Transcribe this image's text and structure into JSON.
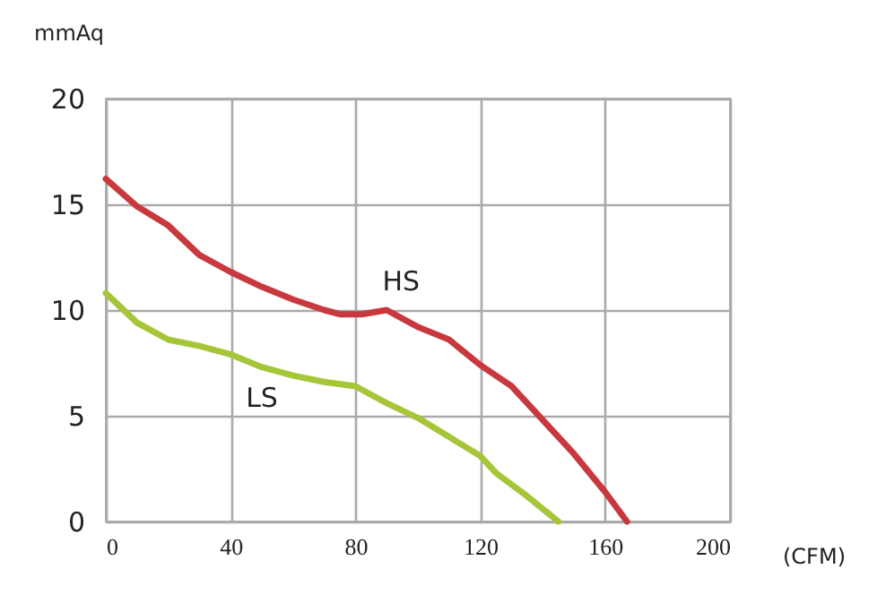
{
  "chart_data": {
    "type": "line",
    "xlabel": "(CFM)",
    "ylabel": "mmAq",
    "xlim": [
      0,
      200
    ],
    "xticks": [
      0,
      40,
      80,
      120,
      160,
      200
    ],
    "ylim": [
      0,
      20
    ],
    "yticks": [
      0,
      5,
      10,
      15,
      20
    ],
    "grid": true,
    "legend": false,
    "marker": "none",
    "line_style": "solid",
    "series": [
      {
        "name": "HS",
        "color": "#c8393f",
        "x": [
          0,
          10,
          20,
          30,
          40,
          50,
          60,
          70,
          75,
          82,
          90,
          100,
          110,
          120,
          130,
          140,
          150,
          160,
          167
        ],
        "values": [
          16.2,
          14.9,
          14.0,
          12.6,
          11.8,
          11.1,
          10.5,
          10.0,
          9.8,
          9.8,
          10.0,
          9.2,
          8.6,
          7.4,
          6.4,
          4.8,
          3.2,
          1.4,
          0
        ]
      },
      {
        "name": "LS",
        "color": "#a6c63a",
        "x": [
          0,
          10,
          20,
          30,
          40,
          50,
          60,
          70,
          80,
          90,
          100,
          110,
          120,
          125,
          135,
          145
        ],
        "values": [
          10.8,
          9.4,
          8.6,
          8.3,
          7.9,
          7.3,
          6.9,
          6.6,
          6.4,
          5.6,
          4.9,
          4.0,
          3.1,
          2.3,
          1.2,
          0
        ]
      }
    ]
  }
}
